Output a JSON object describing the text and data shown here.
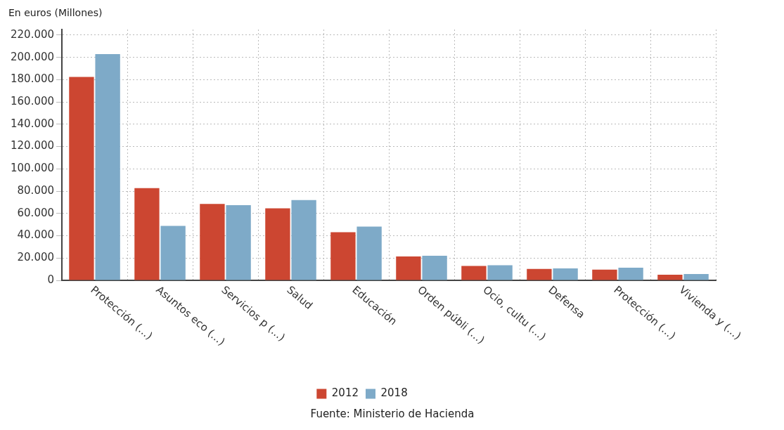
{
  "chart_data": {
    "type": "bar",
    "ylabel": "En euros (Millones)",
    "categories": [
      "Protección (...)",
      "Asuntos eco (...)",
      "Servicios p (...)",
      "Salud",
      "Educación",
      "Orden públi (...)",
      "Ocio, cultu (...)",
      "Defensa",
      "Protección (...)",
      "Vivienda y (...)"
    ],
    "series": [
      {
        "name": "2012",
        "color": "#cc4631",
        "values": [
          182500,
          82800,
          68600,
          64600,
          43100,
          21500,
          13000,
          10200,
          9600,
          5100
        ]
      },
      {
        "name": "2018",
        "color": "#7eaac8",
        "values": [
          203000,
          48800,
          67500,
          72000,
          48200,
          22100,
          13600,
          10800,
          11300,
          5700
        ]
      }
    ],
    "ylim": [
      0,
      225000
    ],
    "yticks": [
      {
        "value": 0,
        "label": "0"
      },
      {
        "value": 20000,
        "label": "20.000"
      },
      {
        "value": 40000,
        "label": "40.000"
      },
      {
        "value": 60000,
        "label": "60.000"
      },
      {
        "value": 80000,
        "label": "80.000"
      },
      {
        "value": 100000,
        "label": "100.000"
      },
      {
        "value": 120000,
        "label": "120.000"
      },
      {
        "value": 140000,
        "label": "140.000"
      },
      {
        "value": 160000,
        "label": "160.000"
      },
      {
        "value": 180000,
        "label": "180.000"
      },
      {
        "value": 200000,
        "label": "200.000"
      },
      {
        "value": 220000,
        "label": "220.000"
      }
    ],
    "grid": true,
    "legend": "bottom",
    "annotations": [
      "Fuente: Ministerio de Hacienda"
    ]
  }
}
